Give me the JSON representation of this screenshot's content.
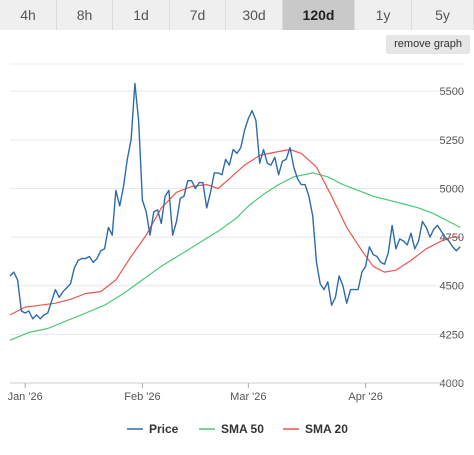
{
  "tabs": [
    "4h",
    "8h",
    "1d",
    "7d",
    "30d",
    "120d",
    "1y",
    "5y"
  ],
  "active_tab": "120d",
  "remove_graph_label": "remove graph",
  "chart_data": {
    "type": "line",
    "y_ticks": [
      4000,
      4250,
      4500,
      4750,
      5000,
      5250,
      5500
    ],
    "x_ticks": [
      "Jan '26",
      "Feb '26",
      "Mar '26",
      "Apr '26"
    ],
    "x_tick_dates": [
      "2026-01-01",
      "2026-02-01",
      "2026-03-01",
      "2026-04-01"
    ],
    "x_range": [
      "2025-12-28",
      "2026-04-27"
    ],
    "ylim": [
      4000,
      5650
    ],
    "grid": true,
    "legend_position": "bottom",
    "series": [
      {
        "name": "Price",
        "color": "#2d6ca8",
        "points": [
          [
            "2025-12-28",
            4550
          ],
          [
            "2025-12-29",
            4570
          ],
          [
            "2025-12-30",
            4530
          ],
          [
            "2025-12-31",
            4370
          ],
          [
            "2026-01-01",
            4360
          ],
          [
            "2026-01-02",
            4370
          ],
          [
            "2026-01-03",
            4330
          ],
          [
            "2026-01-04",
            4350
          ],
          [
            "2026-01-05",
            4330
          ],
          [
            "2026-01-06",
            4350
          ],
          [
            "2026-01-07",
            4360
          ],
          [
            "2026-01-08",
            4420
          ],
          [
            "2026-01-09",
            4480
          ],
          [
            "2026-01-10",
            4440
          ],
          [
            "2026-01-11",
            4470
          ],
          [
            "2026-01-12",
            4490
          ],
          [
            "2026-01-13",
            4510
          ],
          [
            "2026-01-14",
            4590
          ],
          [
            "2026-01-15",
            4630
          ],
          [
            "2026-01-16",
            4640
          ],
          [
            "2026-01-17",
            4640
          ],
          [
            "2026-01-18",
            4650
          ],
          [
            "2026-01-19",
            4620
          ],
          [
            "2026-01-20",
            4640
          ],
          [
            "2026-01-21",
            4680
          ],
          [
            "2026-01-22",
            4690
          ],
          [
            "2026-01-23",
            4800
          ],
          [
            "2026-01-24",
            4760
          ],
          [
            "2026-01-25",
            4990
          ],
          [
            "2026-01-26",
            4910
          ],
          [
            "2026-01-27",
            5010
          ],
          [
            "2026-01-28",
            5150
          ],
          [
            "2026-01-29",
            5250
          ],
          [
            "2026-01-30",
            5540
          ],
          [
            "2026-01-31",
            5350
          ],
          [
            "2026-02-01",
            4940
          ],
          [
            "2026-02-02",
            4880
          ],
          [
            "2026-02-03",
            4760
          ],
          [
            "2026-02-04",
            4880
          ],
          [
            "2026-02-05",
            4890
          ],
          [
            "2026-02-06",
            4820
          ],
          [
            "2026-02-07",
            4960
          ],
          [
            "2026-02-08",
            4990
          ],
          [
            "2026-02-09",
            4760
          ],
          [
            "2026-02-10",
            4830
          ],
          [
            "2026-02-11",
            4950
          ],
          [
            "2026-02-12",
            4960
          ],
          [
            "2026-02-13",
            5040
          ],
          [
            "2026-02-14",
            5040
          ],
          [
            "2026-02-15",
            5000
          ],
          [
            "2026-02-16",
            5030
          ],
          [
            "2026-02-17",
            5030
          ],
          [
            "2026-02-18",
            4900
          ],
          [
            "2026-02-19",
            4980
          ],
          [
            "2026-02-20",
            5080
          ],
          [
            "2026-02-21",
            5080
          ],
          [
            "2026-02-22",
            5070
          ],
          [
            "2026-02-23",
            5150
          ],
          [
            "2026-02-24",
            5120
          ],
          [
            "2026-02-25",
            5200
          ],
          [
            "2026-02-26",
            5180
          ],
          [
            "2026-02-27",
            5210
          ],
          [
            "2026-02-28",
            5300
          ],
          [
            "2026-03-01",
            5360
          ],
          [
            "2026-03-02",
            5400
          ],
          [
            "2026-03-03",
            5350
          ],
          [
            "2026-03-04",
            5130
          ],
          [
            "2026-03-05",
            5200
          ],
          [
            "2026-03-06",
            5130
          ],
          [
            "2026-03-07",
            5120
          ],
          [
            "2026-03-08",
            5160
          ],
          [
            "2026-03-09",
            5070
          ],
          [
            "2026-03-10",
            5140
          ],
          [
            "2026-03-11",
            5150
          ],
          [
            "2026-03-12",
            5210
          ],
          [
            "2026-03-13",
            5110
          ],
          [
            "2026-03-14",
            5050
          ],
          [
            "2026-03-15",
            5020
          ],
          [
            "2026-03-16",
            5020
          ],
          [
            "2026-03-17",
            4960
          ],
          [
            "2026-03-18",
            4860
          ],
          [
            "2026-03-19",
            4620
          ],
          [
            "2026-03-20",
            4510
          ],
          [
            "2026-03-21",
            4480
          ],
          [
            "2026-03-22",
            4520
          ],
          [
            "2026-03-23",
            4400
          ],
          [
            "2026-03-24",
            4440
          ],
          [
            "2026-03-25",
            4550
          ],
          [
            "2026-03-26",
            4500
          ],
          [
            "2026-03-27",
            4410
          ],
          [
            "2026-03-28",
            4480
          ],
          [
            "2026-03-29",
            4480
          ],
          [
            "2026-03-30",
            4480
          ],
          [
            "2026-03-31",
            4570
          ],
          [
            "2026-04-01",
            4600
          ],
          [
            "2026-04-02",
            4700
          ],
          [
            "2026-04-03",
            4660
          ],
          [
            "2026-04-04",
            4650
          ],
          [
            "2026-04-05",
            4620
          ],
          [
            "2026-04-06",
            4610
          ],
          [
            "2026-04-07",
            4670
          ],
          [
            "2026-04-08",
            4810
          ],
          [
            "2026-04-09",
            4690
          ],
          [
            "2026-04-10",
            4740
          ],
          [
            "2026-04-11",
            4730
          ],
          [
            "2026-04-12",
            4710
          ],
          [
            "2026-04-13",
            4770
          ],
          [
            "2026-04-14",
            4690
          ],
          [
            "2026-04-15",
            4730
          ],
          [
            "2026-04-16",
            4830
          ],
          [
            "2026-04-17",
            4800
          ],
          [
            "2026-04-18",
            4750
          ],
          [
            "2026-04-19",
            4790
          ],
          [
            "2026-04-20",
            4810
          ],
          [
            "2026-04-21",
            4780
          ],
          [
            "2026-04-22",
            4750
          ],
          [
            "2026-04-23",
            4730
          ],
          [
            "2026-04-24",
            4700
          ],
          [
            "2026-04-25",
            4680
          ],
          [
            "2026-04-26",
            4700
          ]
        ]
      },
      {
        "name": "SMA 50",
        "color": "#4bc77a",
        "points": [
          [
            "2025-12-28",
            4220
          ],
          [
            "2026-01-02",
            4260
          ],
          [
            "2026-01-07",
            4280
          ],
          [
            "2026-01-12",
            4320
          ],
          [
            "2026-01-17",
            4360
          ],
          [
            "2026-01-22",
            4400
          ],
          [
            "2026-01-27",
            4460
          ],
          [
            "2026-02-01",
            4530
          ],
          [
            "2026-02-06",
            4600
          ],
          [
            "2026-02-11",
            4660
          ],
          [
            "2026-02-16",
            4720
          ],
          [
            "2026-02-21",
            4780
          ],
          [
            "2026-02-26",
            4850
          ],
          [
            "2026-03-01",
            4910
          ],
          [
            "2026-03-05",
            4970
          ],
          [
            "2026-03-09",
            5020
          ],
          [
            "2026-03-13",
            5060
          ],
          [
            "2026-03-18",
            5080
          ],
          [
            "2026-03-22",
            5060
          ],
          [
            "2026-03-26",
            5020
          ],
          [
            "2026-03-30",
            4990
          ],
          [
            "2026-04-03",
            4960
          ],
          [
            "2026-04-07",
            4940
          ],
          [
            "2026-04-11",
            4920
          ],
          [
            "2026-04-15",
            4900
          ],
          [
            "2026-04-19",
            4870
          ],
          [
            "2026-04-23",
            4830
          ],
          [
            "2026-04-26",
            4800
          ]
        ]
      },
      {
        "name": "SMA 20",
        "color": "#e8564e",
        "points": [
          [
            "2025-12-28",
            4350
          ],
          [
            "2026-01-01",
            4390
          ],
          [
            "2026-01-05",
            4400
          ],
          [
            "2026-01-09",
            4410
          ],
          [
            "2026-01-13",
            4430
          ],
          [
            "2026-01-17",
            4460
          ],
          [
            "2026-01-21",
            4470
          ],
          [
            "2026-01-25",
            4530
          ],
          [
            "2026-01-29",
            4650
          ],
          [
            "2026-02-02",
            4760
          ],
          [
            "2026-02-06",
            4900
          ],
          [
            "2026-02-10",
            4980
          ],
          [
            "2026-02-14",
            5010
          ],
          [
            "2026-02-18",
            5020
          ],
          [
            "2026-02-21",
            5000
          ],
          [
            "2026-02-24",
            5050
          ],
          [
            "2026-02-28",
            5120
          ],
          [
            "2026-03-04",
            5170
          ],
          [
            "2026-03-09",
            5190
          ],
          [
            "2026-03-12",
            5200
          ],
          [
            "2026-03-15",
            5180
          ],
          [
            "2026-03-19",
            5110
          ],
          [
            "2026-03-23",
            4960
          ],
          [
            "2026-03-27",
            4800
          ],
          [
            "2026-03-31",
            4680
          ],
          [
            "2026-04-03",
            4600
          ],
          [
            "2026-04-06",
            4570
          ],
          [
            "2026-04-09",
            4580
          ],
          [
            "2026-04-13",
            4630
          ],
          [
            "2026-04-17",
            4690
          ],
          [
            "2026-04-21",
            4730
          ],
          [
            "2026-04-24",
            4750
          ],
          [
            "2026-04-26",
            4750
          ]
        ]
      }
    ]
  }
}
